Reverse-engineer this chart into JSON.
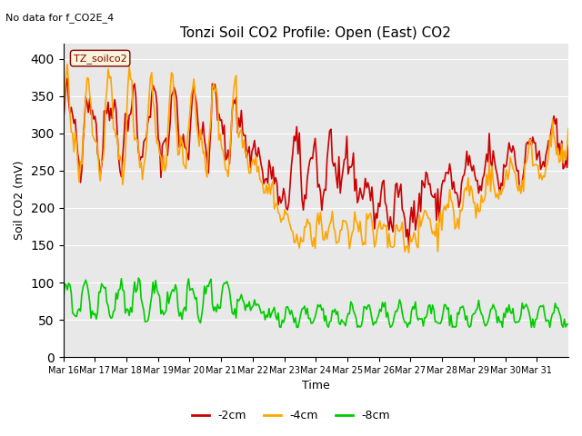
{
  "title": "Tonzi Soil CO2 Profile: Open (East) CO2",
  "subtitle": "No data for f_CO2E_4",
  "ylabel": "Soil CO2 (mV)",
  "xlabel": "Time",
  "legend_label": "TZ_soilco2",
  "series_labels": [
    "-2cm",
    "-4cm",
    "-8cm"
  ],
  "series_colors": [
    "#cc0000",
    "#ffa500",
    "#00cc00"
  ],
  "ylim": [
    0,
    420
  ],
  "yticks": [
    0,
    50,
    100,
    150,
    200,
    250,
    300,
    350,
    400
  ],
  "xtick_labels": [
    "Mar 16",
    "Mar 17",
    "Mar 18",
    "Mar 19",
    "Mar 20",
    "Mar 21",
    "Mar 22",
    "Mar 23",
    "Mar 24",
    "Mar 25",
    "Mar 26",
    "Mar 27",
    "Mar 28",
    "Mar 29",
    "Mar 30",
    "Mar 31"
  ],
  "n_days": 16,
  "bg_color": "#e8e8e8",
  "plot_bg": "#e8e8e8",
  "fig_bg": "#ffffff",
  "linewidth": 1.2
}
